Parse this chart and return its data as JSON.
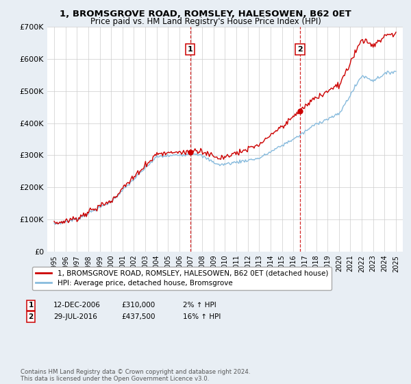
{
  "title": "1, BROMSGROVE ROAD, ROMSLEY, HALESOWEN, B62 0ET",
  "subtitle": "Price paid vs. HM Land Registry's House Price Index (HPI)",
  "ylim": [
    0,
    700000
  ],
  "yticks": [
    0,
    100000,
    200000,
    300000,
    400000,
    500000,
    600000,
    700000
  ],
  "ytick_labels": [
    "£0",
    "£100K",
    "£200K",
    "£300K",
    "£400K",
    "£500K",
    "£600K",
    "£700K"
  ],
  "xlim_lo": 1994.4,
  "xlim_hi": 2025.6,
  "sale1_date": 2006.95,
  "sale1_price": 310000,
  "sale1_label": "1",
  "sale2_date": 2016.58,
  "sale2_price": 437500,
  "sale2_label": "2",
  "line1_color": "#cc0000",
  "line2_color": "#88bbdd",
  "vline_color": "#cc0000",
  "marker_color": "#cc0000",
  "legend1_label": "1, BROMSGROVE ROAD, ROMSLEY, HALESOWEN, B62 0ET (detached house)",
  "legend2_label": "HPI: Average price, detached house, Bromsgrove",
  "sale1_row": "12-DEC-2006",
  "sale1_price_str": "£310,000",
  "sale1_hpi": "2% ↑ HPI",
  "sale2_row": "29-JUL-2016",
  "sale2_price_str": "£437,500",
  "sale2_hpi": "16% ↑ HPI",
  "footnote": "Contains HM Land Registry data © Crown copyright and database right 2024.\nThis data is licensed under the Open Government Licence v3.0.",
  "bg_color": "#e8eef4",
  "plot_bg_color": "#ffffff",
  "grid_color": "#cccccc",
  "title_fontsize": 9.5,
  "subtitle_fontsize": 8.5
}
